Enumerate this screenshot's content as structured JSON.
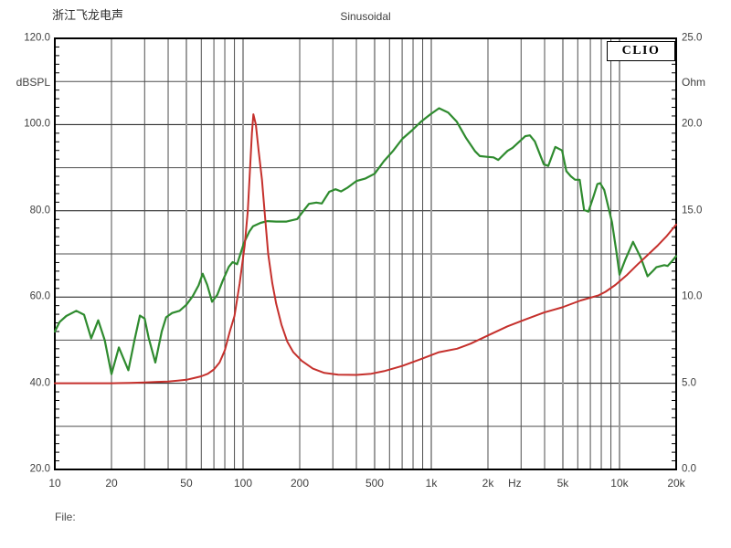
{
  "header": {
    "company": "浙江飞龙电声",
    "measurement": "Sinusoidal"
  },
  "logo": {
    "text": "CLIO"
  },
  "footer": {
    "file_label": "File:"
  },
  "colors": {
    "spl_curve": "#2f8b2f",
    "impedance_curve": "#c5302c",
    "grid_major": "#141414",
    "grid_minor": "#4f4f4f",
    "grid_accent": "#9c9c9c",
    "frame": "#000000",
    "text": "#3f3f3f"
  },
  "chart_data": {
    "type": "line",
    "title": "Sinusoidal",
    "legend": "none",
    "grid": "on",
    "x_axis": {
      "unit_label": "Hz",
      "scale": "log",
      "min": 10,
      "max": 20000,
      "tick_labels": [
        {
          "f": 10,
          "label": "10"
        },
        {
          "f": 20,
          "label": "20"
        },
        {
          "f": 50,
          "label": "50"
        },
        {
          "f": 100,
          "label": "100"
        },
        {
          "f": 200,
          "label": "200"
        },
        {
          "f": 500,
          "label": "500"
        },
        {
          "f": 1000,
          "label": "1k"
        },
        {
          "f": 2000,
          "label": "2k"
        },
        {
          "f": 5000,
          "label": "5k"
        },
        {
          "f": 10000,
          "label": "10k"
        },
        {
          "f": 20000,
          "label": "20k"
        }
      ],
      "grid_minor": [
        20,
        30,
        40,
        60,
        70,
        80,
        90,
        200,
        300,
        400,
        600,
        700,
        800,
        900,
        2000,
        3000,
        4000,
        6000,
        7000,
        8000,
        9000
      ],
      "grid_accent": [
        50,
        100,
        500,
        1000,
        5000,
        10000
      ]
    },
    "y_left": {
      "label": "dBSPL",
      "min": 20,
      "max": 120,
      "gridlines_major": [
        100,
        80,
        60,
        40
      ],
      "gridlines_minor": [
        110,
        90,
        70,
        50,
        30
      ],
      "tick_step": 2,
      "tick_labels": [
        {
          "v": 120,
          "label": "120.0"
        },
        {
          "v": 100,
          "label": "100.0"
        },
        {
          "v": 80,
          "label": "80.0"
        },
        {
          "v": 60,
          "label": "60.0"
        },
        {
          "v": 40,
          "label": "40.0"
        },
        {
          "v": 20,
          "label": "20.0"
        }
      ]
    },
    "y_right": {
      "label": "Ohm",
      "min": 0,
      "max": 25,
      "tick_step": 0.5,
      "tick_labels": [
        {
          "v": 25,
          "label": "25.0"
        },
        {
          "v": 20,
          "label": "20.0"
        },
        {
          "v": 15,
          "label": "15.0"
        },
        {
          "v": 10,
          "label": "10.0"
        },
        {
          "v": 5,
          "label": "5.0"
        },
        {
          "v": 0,
          "label": "0.0"
        }
      ]
    },
    "series": [
      {
        "name": "spl_response",
        "axis": "left",
        "color_key": "spl_curve",
        "points": [
          [
            10,
            52.0
          ],
          [
            10.6,
            54.2
          ],
          [
            11.5,
            55.6
          ],
          [
            13,
            56.8
          ],
          [
            14.3,
            55.9
          ],
          [
            15.6,
            50.4
          ],
          [
            17,
            54.6
          ],
          [
            18.4,
            50.0
          ],
          [
            20,
            42.1
          ],
          [
            21.9,
            48.3
          ],
          [
            24.6,
            43.0
          ],
          [
            26.5,
            50.0
          ],
          [
            28.3,
            55.7
          ],
          [
            30,
            55.0
          ],
          [
            31.5,
            50.5
          ],
          [
            34.2,
            44.8
          ],
          [
            37,
            52.0
          ],
          [
            39,
            55.3
          ],
          [
            42,
            56.3
          ],
          [
            46,
            56.8
          ],
          [
            50,
            58.2
          ],
          [
            54,
            60.2
          ],
          [
            58,
            62.7
          ],
          [
            61,
            65.4
          ],
          [
            64.5,
            62.8
          ],
          [
            68.5,
            58.9
          ],
          [
            73,
            60.5
          ],
          [
            78,
            63.8
          ],
          [
            84,
            67.0
          ],
          [
            88,
            68.1
          ],
          [
            93,
            67.6
          ],
          [
            101,
            72.5
          ],
          [
            108,
            75.2
          ],
          [
            113,
            76.4
          ],
          [
            124,
            77.2
          ],
          [
            135,
            77.6
          ],
          [
            150,
            77.5
          ],
          [
            170,
            77.5
          ],
          [
            194,
            78.1
          ],
          [
            212,
            80.3
          ],
          [
            224,
            81.6
          ],
          [
            245,
            81.9
          ],
          [
            262,
            81.7
          ],
          [
            287,
            84.4
          ],
          [
            310,
            85.0
          ],
          [
            332,
            84.5
          ],
          [
            360,
            85.4
          ],
          [
            400,
            86.9
          ],
          [
            447,
            87.5
          ],
          [
            500,
            88.6
          ],
          [
            560,
            91.5
          ],
          [
            627,
            93.9
          ],
          [
            702,
            96.7
          ],
          [
            787,
            98.6
          ],
          [
            883,
            100.7
          ],
          [
            990,
            102.4
          ],
          [
            1100,
            103.8
          ],
          [
            1230,
            102.8
          ],
          [
            1365,
            100.7
          ],
          [
            1530,
            96.9
          ],
          [
            1710,
            93.8
          ],
          [
            1810,
            92.7
          ],
          [
            2000,
            92.5
          ],
          [
            2140,
            92.4
          ],
          [
            2270,
            91.8
          ],
          [
            2540,
            93.9
          ],
          [
            2700,
            94.6
          ],
          [
            3160,
            97.3
          ],
          [
            3340,
            97.5
          ],
          [
            3550,
            96.1
          ],
          [
            3960,
            90.8
          ],
          [
            4180,
            90.4
          ],
          [
            4560,
            94.8
          ],
          [
            4950,
            94.0
          ],
          [
            5220,
            89.2
          ],
          [
            5510,
            88.0
          ],
          [
            5810,
            87.2
          ],
          [
            6140,
            87.2
          ],
          [
            6480,
            80.2
          ],
          [
            6840,
            79.8
          ],
          [
            7300,
            83.5
          ],
          [
            7630,
            86.2
          ],
          [
            7890,
            86.4
          ],
          [
            8300,
            84.8
          ],
          [
            9120,
            77.4
          ],
          [
            9650,
            70.2
          ],
          [
            10000,
            65.2
          ],
          [
            10700,
            68.5
          ],
          [
            11800,
            72.8
          ],
          [
            13000,
            69.0
          ],
          [
            14100,
            64.8
          ],
          [
            15000,
            66.0
          ],
          [
            15700,
            66.9
          ],
          [
            17300,
            67.4
          ],
          [
            18000,
            67.2
          ],
          [
            19000,
            68.3
          ],
          [
            20000,
            69.5
          ]
        ]
      },
      {
        "name": "impedance",
        "axis": "right",
        "color_key": "impedance_curve",
        "points": [
          [
            10,
            5.0
          ],
          [
            15,
            5.0
          ],
          [
            20,
            5.0
          ],
          [
            25,
            5.02
          ],
          [
            30,
            5.05
          ],
          [
            35,
            5.08
          ],
          [
            40,
            5.1
          ],
          [
            45,
            5.15
          ],
          [
            50,
            5.2
          ],
          [
            55,
            5.3
          ],
          [
            60,
            5.4
          ],
          [
            65,
            5.55
          ],
          [
            70,
            5.8
          ],
          [
            75,
            6.2
          ],
          [
            80,
            6.9
          ],
          [
            85,
            8.0
          ],
          [
            90,
            8.9
          ],
          [
            96,
            10.8
          ],
          [
            102,
            13.0
          ],
          [
            106,
            15.0
          ],
          [
            109,
            17.5
          ],
          [
            111.5,
            19.5
          ],
          [
            113.5,
            20.6
          ],
          [
            117,
            20.0
          ],
          [
            121,
            18.5
          ],
          [
            126,
            16.8
          ],
          [
            130,
            15.0
          ],
          [
            136,
            12.5
          ],
          [
            143,
            10.8
          ],
          [
            150,
            9.6
          ],
          [
            160,
            8.4
          ],
          [
            172,
            7.4
          ],
          [
            185,
            6.8
          ],
          [
            205,
            6.3
          ],
          [
            235,
            5.85
          ],
          [
            270,
            5.6
          ],
          [
            320,
            5.5
          ],
          [
            400,
            5.48
          ],
          [
            480,
            5.55
          ],
          [
            560,
            5.7
          ],
          [
            700,
            6.0
          ],
          [
            880,
            6.4
          ],
          [
            1100,
            6.8
          ],
          [
            1370,
            7.0
          ],
          [
            1620,
            7.3
          ],
          [
            2030,
            7.8
          ],
          [
            2540,
            8.3
          ],
          [
            3170,
            8.7
          ],
          [
            3970,
            9.1
          ],
          [
            4960,
            9.4
          ],
          [
            6210,
            9.8
          ],
          [
            7760,
            10.1
          ],
          [
            8420,
            10.3
          ],
          [
            9500,
            10.7
          ],
          [
            11000,
            11.3
          ],
          [
            12500,
            11.9
          ],
          [
            14000,
            12.4
          ],
          [
            16000,
            13.0
          ],
          [
            17700,
            13.5
          ],
          [
            20000,
            14.2
          ]
        ]
      }
    ]
  }
}
